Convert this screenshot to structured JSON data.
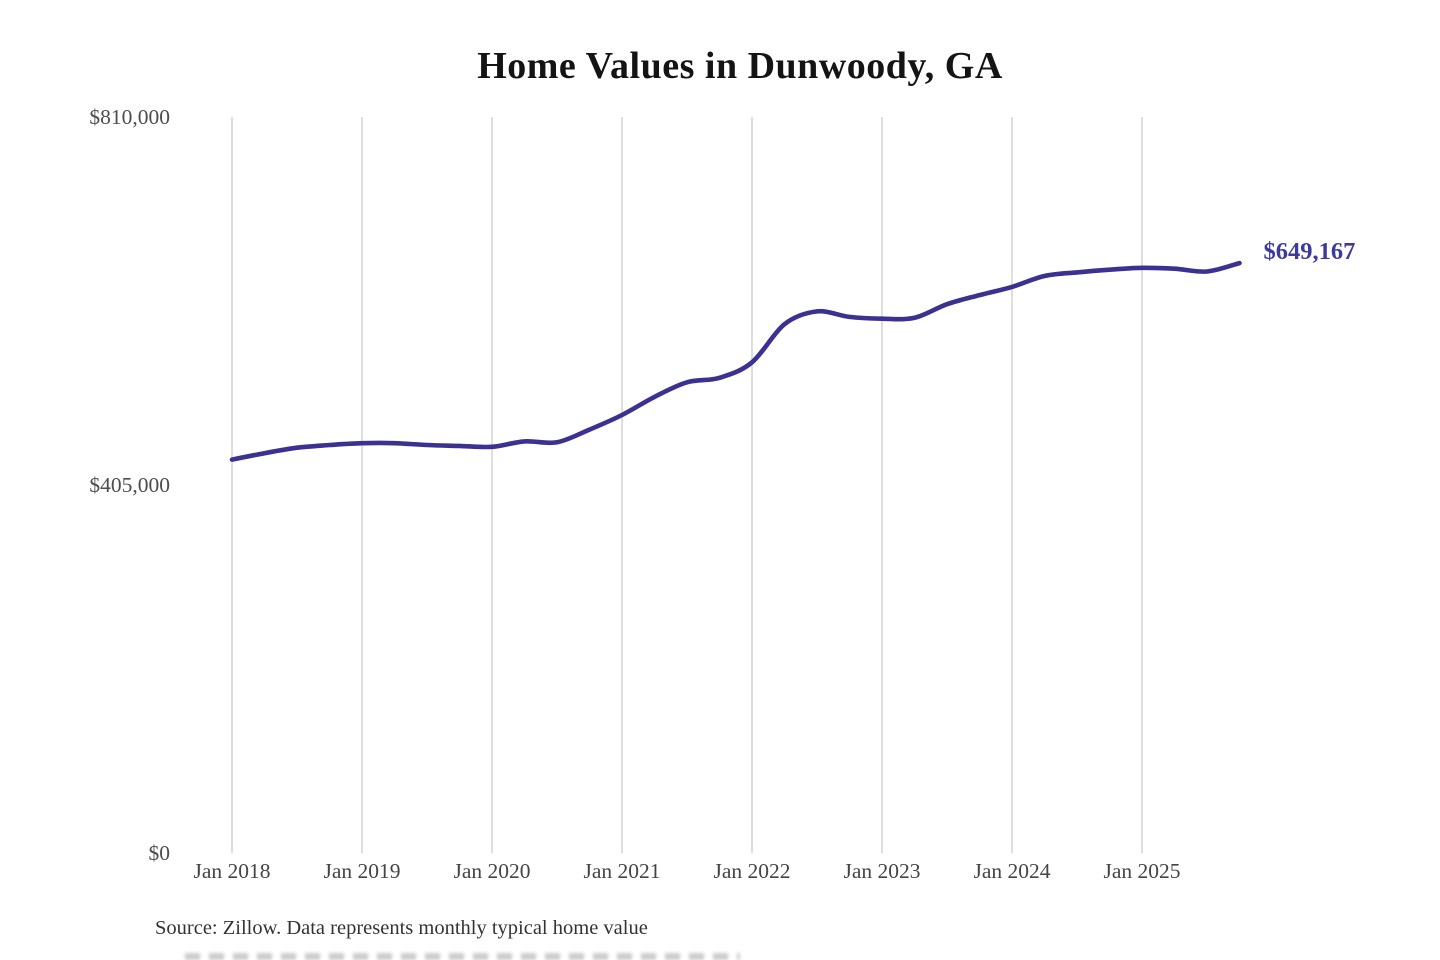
{
  "chart_data": {
    "type": "line",
    "title": "Home Values in Dunwoody, GA",
    "series_name": "Typical home value",
    "unit": "USD",
    "point_interval_months": 3,
    "x": [
      "Jan 2018",
      "Apr 2018",
      "Jul 2018",
      "Oct 2018",
      "Jan 2019",
      "Apr 2019",
      "Jul 2019",
      "Oct 2019",
      "Jan 2020",
      "Apr 2020",
      "Jul 2020",
      "Oct 2020",
      "Jan 2021",
      "Apr 2021",
      "Jul 2021",
      "Oct 2021",
      "Jan 2022",
      "Apr 2022",
      "Jul 2022",
      "Oct 2022",
      "Jan 2023",
      "Apr 2023",
      "Jul 2023",
      "Oct 2023",
      "Jan 2024",
      "Apr 2024",
      "Jul 2024",
      "Oct 2024",
      "Jan 2025",
      "Apr 2025",
      "Jul 2025",
      "Oct 2025"
    ],
    "values": [
      433000,
      440000,
      446000,
      449000,
      451000,
      451000,
      449000,
      448000,
      447000,
      453000,
      452000,
      466000,
      482000,
      502000,
      518000,
      523000,
      540000,
      582000,
      596000,
      590000,
      588000,
      589000,
      604000,
      614000,
      623000,
      635000,
      639000,
      642000,
      644000,
      643000,
      640000,
      649167
    ],
    "x_tick_labels": [
      "Jan 2018",
      "Jan 2019",
      "Jan 2020",
      "Jan 2021",
      "Jan 2022",
      "Jan 2023",
      "Jan 2024",
      "Jan 2025"
    ],
    "y_tick_labels": [
      "$810,000",
      "$405,000",
      "$0"
    ],
    "y_ticks": [
      810000,
      405000,
      0
    ],
    "ylim": [
      0,
      810000
    ],
    "end_annotation": "$649,167",
    "grid": "vertical-only",
    "legend": "none",
    "source": "Source: Zillow. Data represents monthly typical home value"
  },
  "colors": {
    "line": "#3a3190",
    "end_label": "#3d3a9b",
    "gridline": "#c9c9c9",
    "x_tick_text": "#444444",
    "y_tick_text": "#4d4d4d",
    "title_text": "#141414",
    "source_text": "#333333",
    "background": "#ffffff"
  }
}
